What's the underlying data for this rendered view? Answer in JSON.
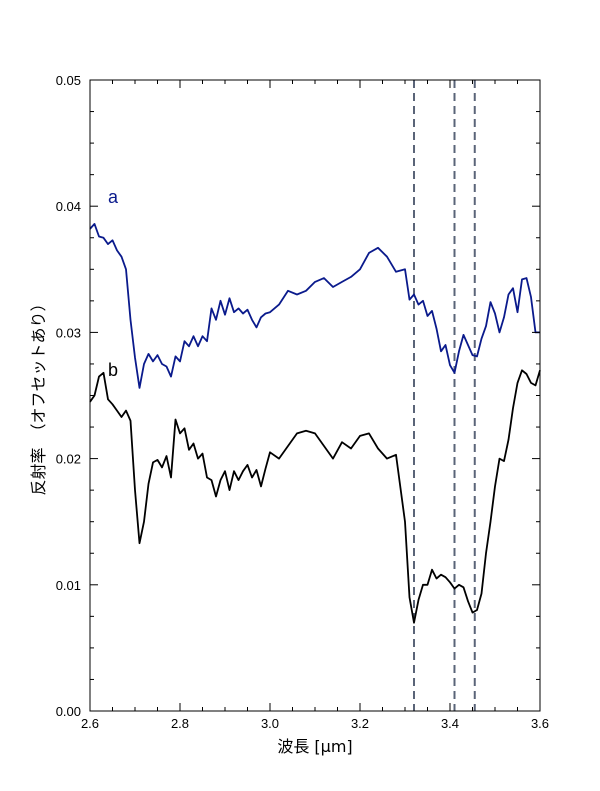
{
  "chart_data": {
    "type": "line",
    "xlabel": "波長 [μm]",
    "ylabel": "反射率　（オフセットあり）",
    "xlim": [
      2.6,
      3.6
    ],
    "ylim": [
      0.0,
      0.05
    ],
    "xticks": [
      2.6,
      2.8,
      3.0,
      3.2,
      3.4,
      3.6
    ],
    "xtick_labels": [
      "2.6",
      "2.8",
      "3.0",
      "3.2",
      "3.4",
      "3.6"
    ],
    "yticks": [
      0.0,
      0.01,
      0.02,
      0.03,
      0.04,
      0.05
    ],
    "ytick_labels": [
      "0.00",
      "0.01",
      "0.02",
      "0.03",
      "0.04",
      "0.05"
    ],
    "grid": false,
    "vlines": [
      3.32,
      3.41,
      3.455
    ],
    "vline_color": "#5a6478",
    "series": [
      {
        "name": "a",
        "color": "#0a1a8c",
        "x": [
          2.6,
          2.61,
          2.62,
          2.63,
          2.64,
          2.65,
          2.66,
          2.67,
          2.68,
          2.69,
          2.7,
          2.71,
          2.72,
          2.73,
          2.74,
          2.75,
          2.76,
          2.77,
          2.78,
          2.79,
          2.8,
          2.81,
          2.82,
          2.83,
          2.84,
          2.85,
          2.86,
          2.87,
          2.88,
          2.89,
          2.9,
          2.91,
          2.92,
          2.93,
          2.94,
          2.95,
          2.96,
          2.97,
          2.98,
          2.99,
          3.0,
          3.02,
          3.04,
          3.06,
          3.08,
          3.1,
          3.12,
          3.14,
          3.16,
          3.18,
          3.2,
          3.22,
          3.24,
          3.26,
          3.28,
          3.3,
          3.31,
          3.32,
          3.33,
          3.34,
          3.35,
          3.36,
          3.37,
          3.38,
          3.39,
          3.4,
          3.41,
          3.42,
          3.43,
          3.44,
          3.45,
          3.46,
          3.47,
          3.48,
          3.49,
          3.5,
          3.51,
          3.52,
          3.53,
          3.54,
          3.55,
          3.56,
          3.57,
          3.58,
          3.59,
          3.6
        ],
        "y": [
          0.0382,
          0.0386,
          0.0376,
          0.0375,
          0.037,
          0.0373,
          0.0365,
          0.036,
          0.035,
          0.031,
          0.028,
          0.0256,
          0.0275,
          0.0283,
          0.0277,
          0.0282,
          0.0275,
          0.0273,
          0.0265,
          0.0281,
          0.0277,
          0.0293,
          0.0289,
          0.0297,
          0.0289,
          0.0297,
          0.0293,
          0.0319,
          0.031,
          0.0325,
          0.0314,
          0.0327,
          0.0316,
          0.0319,
          0.0315,
          0.0318,
          0.031,
          0.0304,
          0.0312,
          0.0315,
          0.0316,
          0.0322,
          0.0333,
          0.033,
          0.0333,
          0.034,
          0.0343,
          0.0336,
          0.034,
          0.0344,
          0.035,
          0.0363,
          0.0367,
          0.036,
          0.0348,
          0.035,
          0.0326,
          0.033,
          0.0322,
          0.0325,
          0.0313,
          0.0317,
          0.0303,
          0.0285,
          0.029,
          0.0274,
          0.0268,
          0.0285,
          0.0298,
          0.029,
          0.0282,
          0.0281,
          0.0295,
          0.0305,
          0.0324,
          0.0315,
          0.03,
          0.0312,
          0.033,
          0.0335,
          0.0316,
          0.0342,
          0.0343,
          0.0328,
          0.03,
          0.03
        ]
      },
      {
        "name": "b",
        "color": "#000000",
        "x": [
          2.6,
          2.61,
          2.62,
          2.63,
          2.64,
          2.65,
          2.66,
          2.67,
          2.68,
          2.69,
          2.7,
          2.71,
          2.72,
          2.73,
          2.74,
          2.75,
          2.76,
          2.77,
          2.78,
          2.79,
          2.8,
          2.81,
          2.82,
          2.83,
          2.84,
          2.85,
          2.86,
          2.87,
          2.88,
          2.89,
          2.9,
          2.91,
          2.92,
          2.93,
          2.94,
          2.95,
          2.96,
          2.97,
          2.98,
          2.99,
          3.0,
          3.02,
          3.04,
          3.06,
          3.08,
          3.1,
          3.12,
          3.14,
          3.16,
          3.18,
          3.2,
          3.22,
          3.24,
          3.26,
          3.28,
          3.3,
          3.31,
          3.32,
          3.33,
          3.34,
          3.35,
          3.36,
          3.37,
          3.38,
          3.39,
          3.4,
          3.41,
          3.42,
          3.43,
          3.44,
          3.45,
          3.46,
          3.47,
          3.48,
          3.49,
          3.5,
          3.51,
          3.52,
          3.53,
          3.54,
          3.55,
          3.56,
          3.57,
          3.58,
          3.59,
          3.6
        ],
        "y": [
          0.0245,
          0.025,
          0.0265,
          0.0268,
          0.0247,
          0.0243,
          0.0238,
          0.0233,
          0.0238,
          0.023,
          0.0175,
          0.0133,
          0.015,
          0.018,
          0.0197,
          0.0199,
          0.0193,
          0.0202,
          0.0185,
          0.0231,
          0.022,
          0.0224,
          0.0207,
          0.0212,
          0.02,
          0.0204,
          0.0185,
          0.0183,
          0.017,
          0.0183,
          0.019,
          0.0175,
          0.019,
          0.0183,
          0.019,
          0.0195,
          0.0185,
          0.0191,
          0.0178,
          0.0192,
          0.0205,
          0.02,
          0.021,
          0.022,
          0.0222,
          0.022,
          0.021,
          0.02,
          0.0213,
          0.0208,
          0.0218,
          0.022,
          0.0208,
          0.02,
          0.0203,
          0.015,
          0.009,
          0.007,
          0.0088,
          0.01,
          0.01,
          0.0112,
          0.0105,
          0.0108,
          0.0106,
          0.0102,
          0.0097,
          0.01,
          0.0098,
          0.0087,
          0.0078,
          0.008,
          0.0093,
          0.0125,
          0.015,
          0.0178,
          0.02,
          0.0198,
          0.0215,
          0.024,
          0.026,
          0.027,
          0.0267,
          0.026,
          0.0258,
          0.027
        ]
      }
    ]
  }
}
